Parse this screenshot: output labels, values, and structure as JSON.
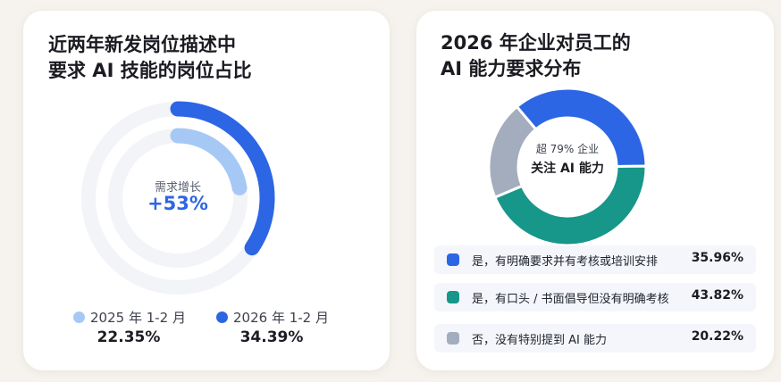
{
  "left_card": {
    "title_line1": "近两年新发岗位描述中",
    "title_line2": "要求 AI 技能的岗位占比",
    "center_caption": "需求增长",
    "center_value": "+53%"
  },
  "right_card": {
    "title_line1": "2026 年企业对员工的",
    "title_line2": "AI 能力要求分布",
    "center_caption": "超 79% 企业",
    "center_value": "关注 AI 能力"
  },
  "chart_data": [
    {
      "type": "radial-bar",
      "title": "近两年新发岗位描述中要求 AI 技能的岗位占比",
      "series": [
        {
          "name": "2025 年 1-2 月",
          "value": 22.35,
          "label": "22.35%",
          "color": "#a6c8f5"
        },
        {
          "name": "2026 年 1-2 月",
          "value": 34.39,
          "label": "34.39%",
          "color": "#2c66e4"
        }
      ],
      "unit": "%",
      "legend": "bottom"
    },
    {
      "type": "pie",
      "title": "2026 年企业对员工的 AI 能力要求分布",
      "categories": [
        "是，有明确要求并有考核或培训安排",
        "是，有口头 / 书面倡导但没有明确考核",
        "否，没有特别提到 AI 能力"
      ],
      "values": [
        35.96,
        43.82,
        20.22
      ],
      "labels": [
        "35.96%",
        "43.82%",
        "20.22%"
      ],
      "colors": [
        "#2c66e4",
        "#17968a",
        "#a3adbd"
      ],
      "legend": "bottom"
    }
  ]
}
